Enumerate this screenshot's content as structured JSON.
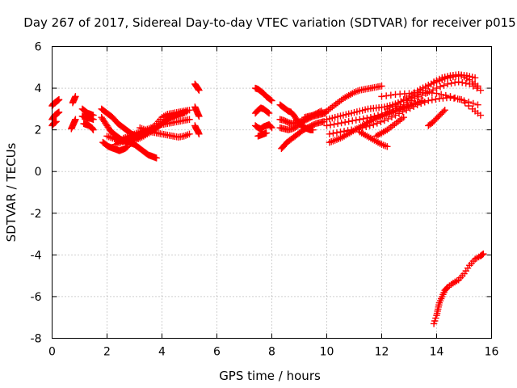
{
  "chart_data": {
    "type": "scatter",
    "title": "Day 267 of 2017, Sidereal Day-to-day VTEC variation (SDTVAR) for receiver p015",
    "xlabel": "GPS time / hours",
    "ylabel": "SDTVAR / TECUs",
    "xlim": [
      0,
      16
    ],
    "ylim": [
      -8,
      6
    ],
    "xticks": [
      0,
      2,
      4,
      6,
      8,
      10,
      12,
      14,
      16
    ],
    "yticks": [
      -8,
      -6,
      -4,
      -2,
      0,
      2,
      4,
      6
    ],
    "grid": true,
    "legend": "none",
    "marker": "plus",
    "color": "#ff0000",
    "series": [
      {
        "x": [
          0.0,
          0.05,
          0.1,
          0.15,
          0.2,
          0.25
        ],
        "y": [
          3.15,
          3.25,
          3.3,
          3.35,
          3.4,
          3.45
        ]
      },
      {
        "x": [
          0.0,
          0.05,
          0.1,
          0.15,
          0.2,
          0.25
        ],
        "y": [
          2.5,
          2.6,
          2.7,
          2.75,
          2.8,
          2.85
        ]
      },
      {
        "x": [
          0.0,
          0.05,
          0.1,
          0.15
        ],
        "y": [
          2.2,
          2.3,
          2.35,
          2.4
        ]
      },
      {
        "x": [
          0.75,
          0.8,
          0.85
        ],
        "y": [
          3.3,
          3.45,
          3.6
        ]
      },
      {
        "x": [
          0.7,
          0.75,
          0.8,
          0.85
        ],
        "y": [
          2.05,
          2.2,
          2.35,
          2.5
        ]
      },
      {
        "x": [
          1.1,
          1.2,
          1.3,
          1.4,
          1.5
        ],
        "y": [
          3.0,
          2.9,
          2.8,
          2.75,
          2.7
        ]
      },
      {
        "x": [
          1.1,
          1.2,
          1.3,
          1.4,
          1.5
        ],
        "y": [
          2.65,
          2.6,
          2.55,
          2.55,
          2.5
        ]
      },
      {
        "x": [
          1.15,
          1.25,
          1.35,
          1.45,
          1.5
        ],
        "y": [
          2.3,
          2.25,
          2.2,
          2.1,
          2.0
        ]
      },
      {
        "x": [
          1.8,
          1.9,
          2.0,
          2.1,
          2.2,
          2.3,
          2.4,
          2.5,
          2.6,
          2.7,
          2.8,
          2.9,
          3.0,
          3.1
        ],
        "y": [
          3.0,
          2.9,
          2.8,
          2.7,
          2.6,
          2.45,
          2.3,
          2.2,
          2.1,
          2.0,
          1.9,
          1.8,
          1.75,
          1.7
        ]
      },
      {
        "x": [
          1.8,
          1.9,
          2.0,
          2.1,
          2.2,
          2.3,
          2.4,
          2.5,
          2.6,
          2.7,
          2.8,
          2.9,
          3.0,
          3.1,
          3.2,
          3.3,
          3.4,
          3.5,
          3.6,
          3.7,
          3.8
        ],
        "y": [
          2.6,
          2.4,
          2.2,
          2.0,
          1.85,
          1.75,
          1.65,
          1.55,
          1.5,
          1.45,
          1.4,
          1.35,
          1.3,
          1.2,
          1.1,
          1.0,
          0.9,
          0.8,
          0.75,
          0.7,
          0.65
        ]
      },
      {
        "x": [
          1.85,
          1.95,
          2.05,
          2.15,
          2.25,
          2.35,
          2.45,
          2.55,
          2.65,
          2.75
        ],
        "y": [
          1.4,
          1.3,
          1.2,
          1.15,
          1.1,
          1.05,
          1.0,
          1.05,
          1.1,
          1.2
        ]
      },
      {
        "x": [
          2.0,
          2.2,
          2.4,
          2.6,
          2.8,
          3.0,
          3.2,
          3.4,
          3.6,
          3.8,
          4.0,
          4.2,
          4.4,
          4.6,
          4.8
        ],
        "y": [
          1.7,
          1.6,
          1.5,
          1.45,
          1.45,
          1.5,
          1.6,
          1.75,
          1.9,
          2.1,
          2.3,
          2.45,
          2.6,
          2.7,
          2.8
        ]
      },
      {
        "x": [
          2.3,
          2.5,
          2.7,
          2.9,
          3.1,
          3.3,
          3.5,
          3.7,
          3.9,
          4.1,
          4.3,
          4.5,
          4.7,
          4.9
        ],
        "y": [
          1.3,
          1.4,
          1.5,
          1.6,
          1.7,
          1.8,
          1.9,
          2.0,
          2.2,
          2.4,
          2.6,
          2.7,
          2.8,
          2.85
        ]
      },
      {
        "x": [
          2.6,
          2.8,
          3.0,
          3.2,
          3.4,
          3.6,
          3.8,
          4.0,
          4.2,
          4.4,
          4.6,
          4.8,
          5.0
        ],
        "y": [
          1.6,
          1.7,
          1.8,
          1.9,
          2.0,
          2.1,
          2.2,
          2.25,
          2.3,
          2.35,
          2.4,
          2.45,
          2.5
        ]
      },
      {
        "x": [
          3.0,
          3.2,
          3.4,
          3.6,
          3.8,
          4.0,
          4.2,
          4.4,
          4.6,
          4.8,
          5.0
        ],
        "y": [
          1.5,
          1.65,
          1.8,
          2.0,
          2.3,
          2.6,
          2.75,
          2.8,
          2.85,
          2.9,
          2.95
        ]
      },
      {
        "x": [
          3.2,
          3.4,
          3.6,
          3.8,
          4.0,
          4.2,
          4.4,
          4.6,
          4.8,
          5.0
        ],
        "y": [
          2.1,
          2.0,
          1.9,
          1.85,
          1.8,
          1.75,
          1.7,
          1.65,
          1.7,
          1.8
        ]
      },
      {
        "x": [
          5.2,
          5.25,
          5.3,
          5.35
        ],
        "y": [
          4.2,
          4.1,
          4.0,
          3.9
        ]
      },
      {
        "x": [
          5.2,
          5.25,
          5.3,
          5.35
        ],
        "y": [
          3.1,
          2.95,
          2.8,
          2.65
        ]
      },
      {
        "x": [
          5.2,
          5.25,
          5.3,
          5.35
        ],
        "y": [
          2.2,
          2.05,
          1.95,
          1.8
        ]
      },
      {
        "x": [
          7.4,
          7.5,
          7.6,
          7.7,
          7.8,
          7.9,
          8.0
        ],
        "y": [
          4.0,
          3.95,
          3.85,
          3.75,
          3.6,
          3.5,
          3.4
        ]
      },
      {
        "x": [
          7.4,
          7.5,
          7.6,
          7.7,
          7.8,
          7.9
        ],
        "y": [
          2.8,
          2.95,
          3.05,
          3.0,
          2.9,
          2.8
        ]
      },
      {
        "x": [
          7.4,
          7.5,
          7.6,
          7.7,
          7.8,
          7.9,
          8.0
        ],
        "y": [
          2.2,
          2.1,
          2.05,
          2.15,
          2.2,
          2.25,
          2.1
        ]
      },
      {
        "x": [
          7.5,
          7.6,
          7.7,
          7.8
        ],
        "y": [
          1.7,
          1.75,
          1.8,
          1.85
        ]
      },
      {
        "x": [
          8.3,
          8.4,
          8.5,
          8.6,
          8.7,
          8.8,
          8.9,
          9.0,
          9.1,
          9.2,
          9.3,
          9.4,
          9.5
        ],
        "y": [
          3.2,
          3.1,
          3.0,
          2.9,
          2.85,
          2.7,
          2.5,
          2.3,
          2.2,
          2.1,
          2.05,
          2.0,
          2.0
        ]
      },
      {
        "x": [
          8.3,
          8.45,
          8.6,
          8.75,
          8.9,
          9.05,
          9.2,
          9.35,
          9.5,
          9.65,
          9.8,
          9.95
        ],
        "y": [
          2.5,
          2.45,
          2.35,
          2.3,
          2.35,
          2.4,
          2.5,
          2.6,
          2.7,
          2.75,
          2.8,
          2.85
        ]
      },
      {
        "x": [
          8.3,
          8.45,
          8.6,
          8.75,
          8.9,
          9.05,
          9.2,
          9.35,
          9.5,
          9.65,
          9.8,
          9.95
        ],
        "y": [
          2.1,
          2.05,
          2.0,
          2.05,
          2.15,
          2.3,
          2.45,
          2.55,
          2.65,
          2.7,
          2.75,
          2.8
        ]
      },
      {
        "x": [
          8.35,
          8.45,
          8.55,
          8.7,
          8.85,
          9.0,
          9.15,
          9.3,
          9.45,
          9.6,
          9.75,
          9.9
        ],
        "y": [
          1.1,
          1.25,
          1.4,
          1.55,
          1.7,
          1.85,
          2.0,
          2.1,
          2.2,
          2.3,
          2.35,
          2.4
        ]
      },
      {
        "x": [
          9.2,
          9.35,
          9.5,
          9.65,
          9.8
        ],
        "y": [
          2.6,
          2.65,
          2.7,
          2.8,
          2.9
        ]
      },
      {
        "x": [
          10.0,
          10.2,
          10.4,
          10.6,
          10.8,
          11.0,
          11.2,
          11.4,
          11.6,
          11.8,
          12.0
        ],
        "y": [
          2.9,
          3.1,
          3.3,
          3.5,
          3.65,
          3.8,
          3.9,
          3.95,
          4.0,
          4.05,
          4.1
        ]
      },
      {
        "x": [
          10.0,
          10.3,
          10.6,
          10.9,
          11.2,
          11.5,
          11.8,
          12.1,
          12.4,
          12.7,
          13.0,
          13.3,
          13.6,
          13.9,
          14.2,
          14.5,
          14.8,
          15.1,
          15.4
        ],
        "y": [
          2.5,
          2.6,
          2.7,
          2.8,
          2.9,
          3.0,
          3.05,
          3.1,
          3.2,
          3.35,
          3.5,
          3.7,
          4.0,
          4.3,
          4.5,
          4.6,
          4.65,
          4.6,
          4.5
        ]
      },
      {
        "x": [
          10.0,
          10.4,
          10.8,
          11.2,
          11.6,
          12.0,
          12.4,
          12.8,
          13.2,
          13.6,
          14.0,
          14.4,
          14.8,
          15.2,
          15.6
        ],
        "y": [
          2.2,
          2.3,
          2.4,
          2.5,
          2.6,
          2.75,
          2.95,
          3.2,
          3.5,
          3.75,
          4.0,
          4.2,
          4.3,
          4.2,
          3.9
        ]
      },
      {
        "x": [
          10.1,
          10.5,
          10.9,
          11.3,
          11.7,
          12.1,
          12.5,
          12.9,
          13.3,
          13.7,
          14.1,
          14.5,
          14.9,
          15.3,
          15.6
        ],
        "y": [
          1.8,
          1.9,
          2.0,
          2.1,
          2.25,
          2.45,
          2.7,
          2.95,
          3.2,
          3.4,
          3.5,
          3.55,
          3.45,
          3.0,
          2.7
        ]
      },
      {
        "x": [
          10.1,
          10.3,
          10.5,
          10.7,
          10.9,
          11.1,
          11.3,
          11.5,
          11.7,
          11.9,
          12.1,
          12.3,
          12.5,
          12.7,
          12.9,
          13.1,
          13.3,
          13.5
        ],
        "y": [
          1.4,
          1.5,
          1.6,
          1.75,
          1.9,
          2.05,
          2.2,
          2.35,
          2.5,
          2.6,
          2.7,
          2.8,
          2.9,
          3.0,
          3.1,
          3.2,
          3.3,
          3.4
        ]
      },
      {
        "x": [
          11.2,
          11.4,
          11.6,
          11.8,
          12.0,
          12.2
        ],
        "y": [
          1.9,
          1.75,
          1.6,
          1.45,
          1.3,
          1.2
        ]
      },
      {
        "x": [
          11.8,
          12.0,
          12.2,
          12.4,
          12.6,
          12.8
        ],
        "y": [
          1.7,
          1.85,
          2.0,
          2.2,
          2.4,
          2.6
        ]
      },
      {
        "x": [
          12.0,
          12.5,
          13.0,
          13.5,
          14.0,
          14.5,
          15.0,
          15.5
        ],
        "y": [
          3.6,
          3.7,
          3.75,
          3.8,
          3.75,
          3.6,
          3.4,
          3.2
        ]
      },
      {
        "x": [
          12.2,
          12.5,
          12.8,
          13.1,
          13.4,
          13.7,
          14.0,
          14.3,
          14.6,
          14.9,
          15.2,
          15.5
        ],
        "y": [
          3.0,
          3.2,
          3.45,
          3.7,
          3.95,
          4.15,
          4.3,
          4.45,
          4.55,
          4.6,
          4.4,
          4.1
        ]
      },
      {
        "x": [
          13.7,
          13.85,
          14.0,
          14.15,
          14.3
        ],
        "y": [
          2.2,
          2.35,
          2.55,
          2.75,
          2.95
        ]
      },
      {
        "x": [
          13.9,
          14.0,
          14.05,
          14.1,
          14.2,
          14.3,
          14.4,
          14.6,
          14.8,
          15.0,
          15.2,
          15.4,
          15.6,
          15.7
        ],
        "y": [
          -7.3,
          -6.9,
          -6.6,
          -6.3,
          -6.0,
          -5.7,
          -5.55,
          -5.35,
          -5.2,
          -4.9,
          -4.5,
          -4.2,
          -4.05,
          -3.95
        ]
      }
    ]
  }
}
